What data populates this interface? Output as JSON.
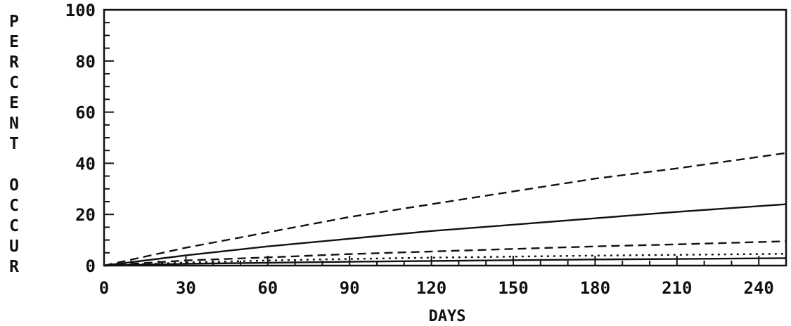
{
  "chart_data": {
    "type": "line",
    "title": "",
    "xlabel": "DAYS",
    "ylabel": "PERCENT OCCUR",
    "xlim": [
      0,
      250
    ],
    "ylim": [
      0,
      100
    ],
    "x_ticks": [
      0,
      30,
      60,
      90,
      120,
      150,
      180,
      210,
      240
    ],
    "y_ticks": [
      0,
      20,
      40,
      60,
      80,
      100
    ],
    "x_tick_labels": [
      "0",
      "30",
      "60",
      "90",
      "120",
      "150",
      "180",
      "210",
      "240"
    ],
    "y_tick_labels": [
      "0",
      "20",
      "40",
      "60",
      "80",
      "100"
    ],
    "grid": false,
    "legend": "none",
    "series": [
      {
        "style": "dashed",
        "x": [
          0,
          30,
          60,
          90,
          120,
          150,
          180,
          210,
          250
        ],
        "y": [
          0,
          7,
          13,
          19,
          24,
          29,
          34,
          38,
          44
        ]
      },
      {
        "style": "solid",
        "x": [
          0,
          30,
          60,
          90,
          120,
          150,
          180,
          210,
          250
        ],
        "y": [
          0,
          4,
          7.5,
          10.5,
          13.5,
          16,
          18.5,
          21,
          24
        ]
      },
      {
        "style": "dashed",
        "x": [
          0,
          30,
          60,
          90,
          120,
          150,
          180,
          210,
          250
        ],
        "y": [
          0,
          2,
          3.2,
          4.5,
          5.5,
          6.5,
          7.5,
          8.3,
          9.5
        ]
      },
      {
        "style": "dotted",
        "x": [
          0,
          30,
          60,
          90,
          120,
          150,
          180,
          210,
          250
        ],
        "y": [
          0,
          1.2,
          2,
          2.6,
          3.1,
          3.5,
          3.9,
          4.2,
          4.6
        ]
      },
      {
        "style": "solid",
        "x": [
          0,
          30,
          60,
          90,
          120,
          150,
          180,
          210,
          250
        ],
        "y": [
          0,
          0.7,
          1.1,
          1.5,
          1.8,
          2.1,
          2.4,
          2.6,
          2.9
        ]
      }
    ]
  }
}
